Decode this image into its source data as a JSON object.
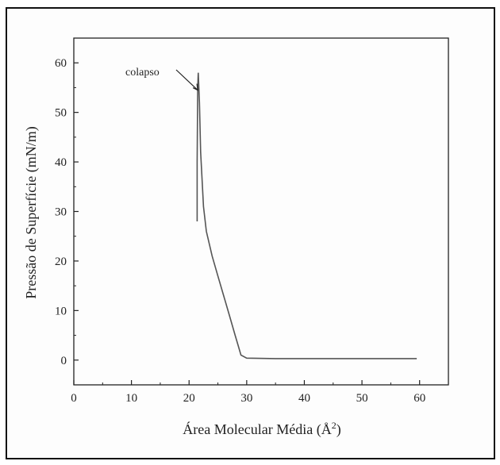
{
  "chart_data": {
    "type": "line",
    "title": "",
    "xlabel": "Área Molecular Média (Å",
    "xlabel_sup": "2",
    "xlabel_end": ")",
    "ylabel": "Pressão de Superfície (mN/m)",
    "xlim": [
      0,
      65
    ],
    "ylim": [
      -5,
      65
    ],
    "xticks": [
      "0",
      "10",
      "20",
      "30",
      "40",
      "50",
      "60"
    ],
    "yticks": [
      "0",
      "10",
      "20",
      "30",
      "40",
      "50",
      "60"
    ],
    "grid": false,
    "legend": "none",
    "line_color": "#555555",
    "annotation": {
      "text": "colapso",
      "target_x": 21.5,
      "target_y": 54.5
    },
    "series": [
      {
        "values_x": [
          59.5,
          45,
          35,
          30,
          29,
          28.5,
          28,
          27,
          26,
          25,
          24,
          23,
          22.5,
          22,
          21.8,
          21.6,
          21.5,
          21.4,
          21.4
        ],
        "values_y": [
          0.3,
          0.3,
          0.3,
          0.4,
          1,
          3,
          5,
          9,
          13,
          17,
          21,
          26,
          31,
          42,
          52,
          58,
          55,
          40,
          28
        ]
      }
    ]
  }
}
